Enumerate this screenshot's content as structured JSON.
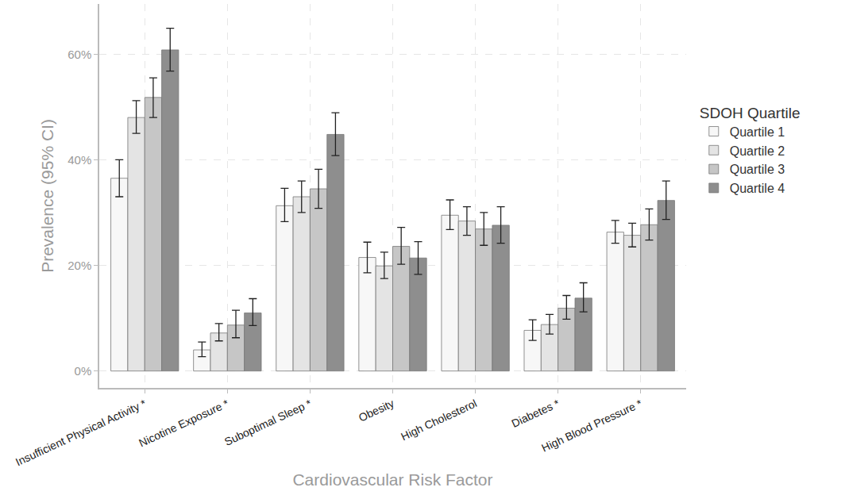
{
  "chart_data": {
    "type": "bar",
    "x_label": "Cardiovascular Risk Factor",
    "y_label": "Prevalence (95% CI)",
    "categories": [
      "Insufficient Physical Activity *",
      "Nicotine Exposure *",
      "Suboptimal Sleep *",
      "Obesity",
      "High Cholesterol",
      "Diabetes *",
      "High Blood Pressure *"
    ],
    "series": [
      {
        "name": "Quartile 1",
        "color": "#f7f7f7",
        "values": [
          36.5,
          4.0,
          31.3,
          21.5,
          29.5,
          7.7,
          26.3
        ],
        "ci_low": [
          33.0,
          2.7,
          28.3,
          18.6,
          26.8,
          5.8,
          24.2
        ],
        "ci_high": [
          40.0,
          5.5,
          34.6,
          24.4,
          32.4,
          9.7,
          28.5
        ]
      },
      {
        "name": "Quartile 2",
        "color": "#e4e4e4",
        "values": [
          48.0,
          7.2,
          33.0,
          19.9,
          28.4,
          8.8,
          25.7
        ],
        "ci_low": [
          45.0,
          5.7,
          30.0,
          17.5,
          25.7,
          7.0,
          23.5
        ],
        "ci_high": [
          51.2,
          9.0,
          36.0,
          22.5,
          31.1,
          10.7,
          28.0
        ]
      },
      {
        "name": "Quartile 3",
        "color": "#c6c6c6",
        "values": [
          51.8,
          8.7,
          34.5,
          23.6,
          26.9,
          11.9,
          27.7
        ],
        "ci_low": [
          48.0,
          6.3,
          30.8,
          20.2,
          23.8,
          9.8,
          24.8
        ],
        "ci_high": [
          55.5,
          11.5,
          38.2,
          27.2,
          30.0,
          14.3,
          30.7
        ]
      },
      {
        "name": "Quartile 4",
        "color": "#8e8e8e",
        "values": [
          60.8,
          11.0,
          44.8,
          21.4,
          27.6,
          13.8,
          32.3
        ],
        "ci_low": [
          56.8,
          8.6,
          40.8,
          18.3,
          24.2,
          11.2,
          28.7
        ],
        "ci_high": [
          64.9,
          13.7,
          48.9,
          24.5,
          31.1,
          16.7,
          36.0
        ]
      }
    ],
    "ylim": [
      -3.2,
      69.5
    ],
    "yticks": [
      {
        "value": 0,
        "label": "0%"
      },
      {
        "value": 20,
        "label": "20%"
      },
      {
        "value": 40,
        "label": "40%"
      },
      {
        "value": 60,
        "label": "60%"
      }
    ],
    "grid": true,
    "legend": "right",
    "legend_title": "SDOH Quartile"
  }
}
